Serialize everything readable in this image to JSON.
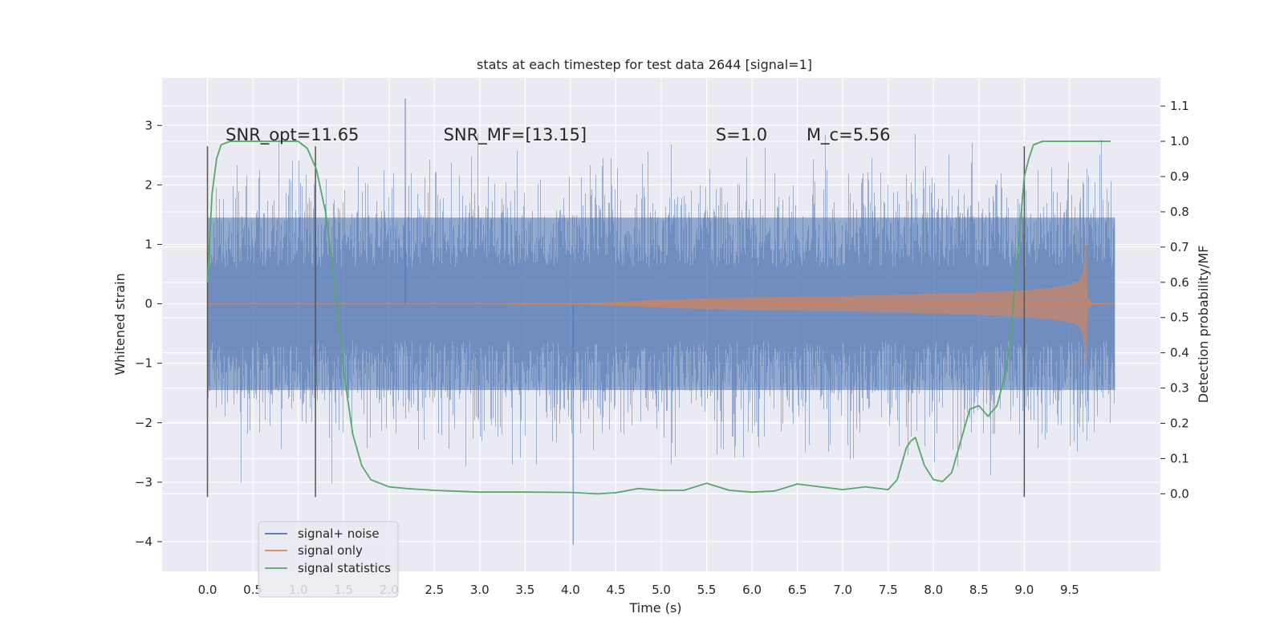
{
  "chart_data": {
    "type": "line",
    "title": "stats at each timestep for test data 2644 [signal=1]",
    "xlabel": "Time (s)",
    "ylabel": "Whitened strain",
    "y2label": "Detection probability/MF",
    "xlim": [
      -0.5,
      10.5
    ],
    "ylim": [
      -4.5,
      3.8
    ],
    "y2lim": [
      -0.22,
      1.18
    ],
    "xticks": [
      0.0,
      0.5,
      1.0,
      1.5,
      2.0,
      2.5,
      3.0,
      3.5,
      4.0,
      4.5,
      5.0,
      5.5,
      6.0,
      6.5,
      7.0,
      7.5,
      8.0,
      8.5,
      9.0,
      9.5
    ],
    "xtick_labels": [
      "0.0",
      "0.5",
      "1.0",
      "1.5",
      "2.0",
      "2.5",
      "3.0",
      "3.5",
      "4.0",
      "4.5",
      "5.0",
      "5.5",
      "6.0",
      "6.5",
      "7.0",
      "7.5",
      "8.0",
      "8.5",
      "9.0",
      "9.5"
    ],
    "yticks": [
      -4,
      -3,
      -2,
      -1,
      0,
      1,
      2,
      3
    ],
    "ytick_labels": [
      "−4",
      "−3",
      "−2",
      "−1",
      "0",
      "1",
      "2",
      "3"
    ],
    "y2ticks": [
      0.0,
      0.1,
      0.2,
      0.3,
      0.4,
      0.5,
      0.6,
      0.7,
      0.8,
      0.9,
      1.0,
      1.1
    ],
    "y2tick_labels": [
      "0.0",
      "0.1",
      "0.2",
      "0.3",
      "0.4",
      "0.5",
      "0.6",
      "0.7",
      "0.8",
      "0.9",
      "1.0",
      "1.1"
    ],
    "grid": true,
    "legend_position": "lower-left",
    "annotations": [
      {
        "text": "SNR_opt=11.65",
        "x": 0.2,
        "y": 2.75
      },
      {
        "text": "SNR_MF=[13.15]",
        "x": 2.6,
        "y": 2.75
      },
      {
        "text": "S=1.0",
        "x": 5.6,
        "y": 2.75
      },
      {
        "text": "M_c=5.56",
        "x": 6.6,
        "y": 2.75
      }
    ],
    "vlines": [
      {
        "x": 0.0,
        "ymin": -3.25,
        "ymax": 2.65
      },
      {
        "x": 1.19,
        "ymin": -3.25,
        "ymax": 2.65
      },
      {
        "x": 9.0,
        "ymin": -3.25,
        "ymax": 2.65
      }
    ],
    "series": [
      {
        "name": "signal+ noise",
        "color": "#4c72b0",
        "kind": "noise",
        "x_range": [
          0.0,
          10.0
        ],
        "band_abs": 1.45,
        "peak_max": 3.45,
        "peak_min": -4.05
      },
      {
        "name": "signal only",
        "color": "#dd8452",
        "kind": "chirp",
        "x": [
          0.0,
          3.0,
          4.0,
          4.5,
          5.0,
          5.5,
          6.0,
          6.5,
          7.0,
          7.5,
          8.0,
          8.5,
          9.0,
          9.3,
          9.5,
          9.6,
          9.65,
          9.68,
          9.7,
          9.75,
          10.0
        ],
        "amplitude": [
          0.0,
          0.0,
          0.01,
          0.03,
          0.07,
          0.09,
          0.11,
          0.12,
          0.13,
          0.15,
          0.17,
          0.19,
          0.23,
          0.27,
          0.32,
          0.38,
          0.55,
          1.15,
          0.1,
          0.02,
          0.0
        ]
      },
      {
        "name": "signal statistics",
        "color": "#55a868",
        "axis": "right",
        "x": [
          0.0,
          0.05,
          0.1,
          0.15,
          0.25,
          0.4,
          0.6,
          0.8,
          1.0,
          1.1,
          1.2,
          1.3,
          1.4,
          1.5,
          1.6,
          1.7,
          1.8,
          1.9,
          2.0,
          2.2,
          2.5,
          3.0,
          3.5,
          4.0,
          4.3,
          4.5,
          4.75,
          5.0,
          5.25,
          5.5,
          5.75,
          6.0,
          6.25,
          6.5,
          6.75,
          7.0,
          7.25,
          7.5,
          7.6,
          7.7,
          7.75,
          7.8,
          7.85,
          7.9,
          8.0,
          8.1,
          8.2,
          8.3,
          8.4,
          8.5,
          8.6,
          8.7,
          8.8,
          8.85,
          8.9,
          9.0,
          9.05,
          9.1,
          9.2,
          9.4,
          9.7,
          9.95
        ],
        "y": [
          0.6,
          0.85,
          0.95,
          0.99,
          1.0,
          1.0,
          1.0,
          1.0,
          1.0,
          0.98,
          0.92,
          0.8,
          0.6,
          0.35,
          0.17,
          0.08,
          0.04,
          0.03,
          0.02,
          0.015,
          0.01,
          0.005,
          0.005,
          0.004,
          0.0,
          0.003,
          0.015,
          0.01,
          0.01,
          0.03,
          0.01,
          0.005,
          0.008,
          0.028,
          0.02,
          0.012,
          0.02,
          0.012,
          0.04,
          0.13,
          0.15,
          0.16,
          0.12,
          0.08,
          0.04,
          0.035,
          0.06,
          0.15,
          0.24,
          0.25,
          0.22,
          0.25,
          0.35,
          0.45,
          0.6,
          0.9,
          0.95,
          0.99,
          1.0,
          1.0,
          1.0,
          1.0
        ]
      }
    ]
  }
}
